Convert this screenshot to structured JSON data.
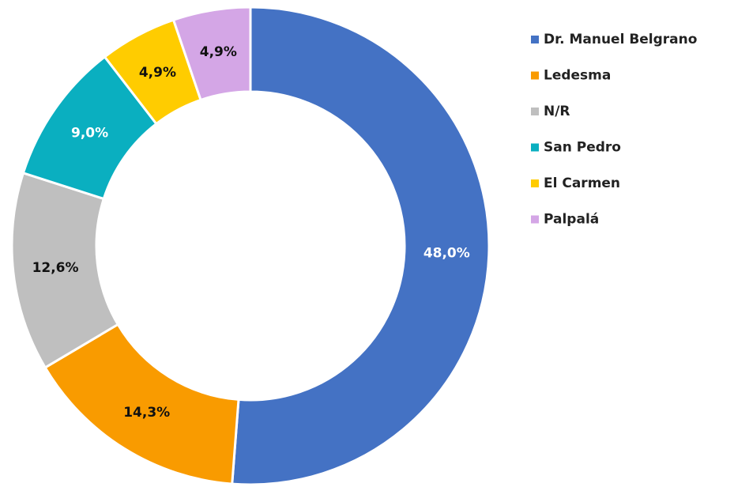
{
  "chart_data": {
    "type": "donut",
    "categories": [
      "Dr. Manuel Belgrano",
      "Ledesma",
      "N/R",
      "San Pedro",
      "El Carmen",
      "Palpalá"
    ],
    "values": [
      48.0,
      14.3,
      12.6,
      9.0,
      4.9,
      4.9
    ],
    "value_labels": [
      "48,0%",
      "14,3%",
      "12,6%",
      "9,0%",
      "4,9%",
      "4,9%"
    ],
    "colors": [
      "#4472c4",
      "#f99b00",
      "#bfbfbf",
      "#0aafc0",
      "#ffcc00",
      "#d4a6e6"
    ],
    "legend": "right"
  }
}
